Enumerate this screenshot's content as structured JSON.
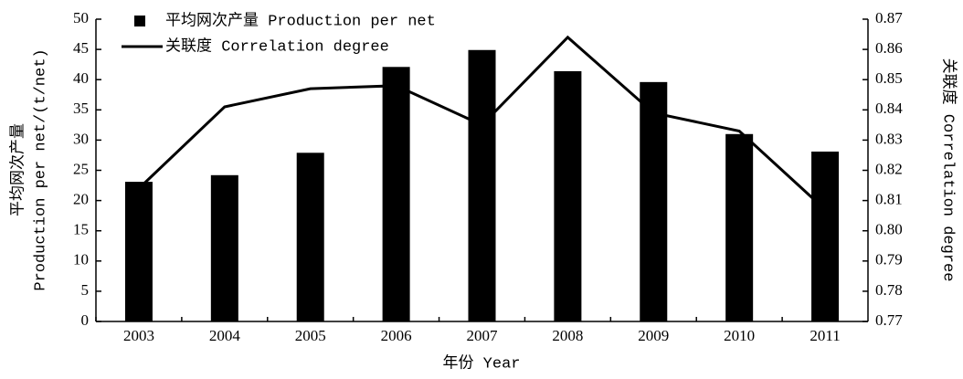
{
  "chart_data": {
    "type": "bar_line",
    "categories": [
      "2003",
      "2004",
      "2005",
      "2006",
      "2007",
      "2008",
      "2009",
      "2010",
      "2011"
    ],
    "series": [
      {
        "name": "平均网次产量 Production per net",
        "type": "bar",
        "color": "#000000",
        "values": [
          23.1,
          24.2,
          27.9,
          42.1,
          44.9,
          41.4,
          39.6,
          31.0,
          28.1
        ]
      },
      {
        "name": "关联度 Correlation degree",
        "type": "line",
        "axis": "y2",
        "color": "#000000",
        "values": [
          0.814,
          0.841,
          0.847,
          0.848,
          0.835,
          0.864,
          0.839,
          0.833,
          0.807
        ]
      }
    ],
    "xlabel": "年份 Year",
    "ylabel": [
      "平均网次产量",
      "Production per net/(t/net)"
    ],
    "y2label": "关联度 Correlation degree",
    "ylim": [
      0,
      50
    ],
    "yticks": [
      0,
      5,
      10,
      15,
      20,
      25,
      30,
      35,
      40,
      45,
      50
    ],
    "y2lim": [
      0.77,
      0.87
    ],
    "y2ticks": [
      0.77,
      0.78,
      0.79,
      {
        "value": 0.8,
        "label": "0.80"
      },
      0.81,
      0.82,
      0.83,
      0.84,
      0.85,
      0.86,
      0.87
    ],
    "legend": "upper left",
    "grid": false
  }
}
